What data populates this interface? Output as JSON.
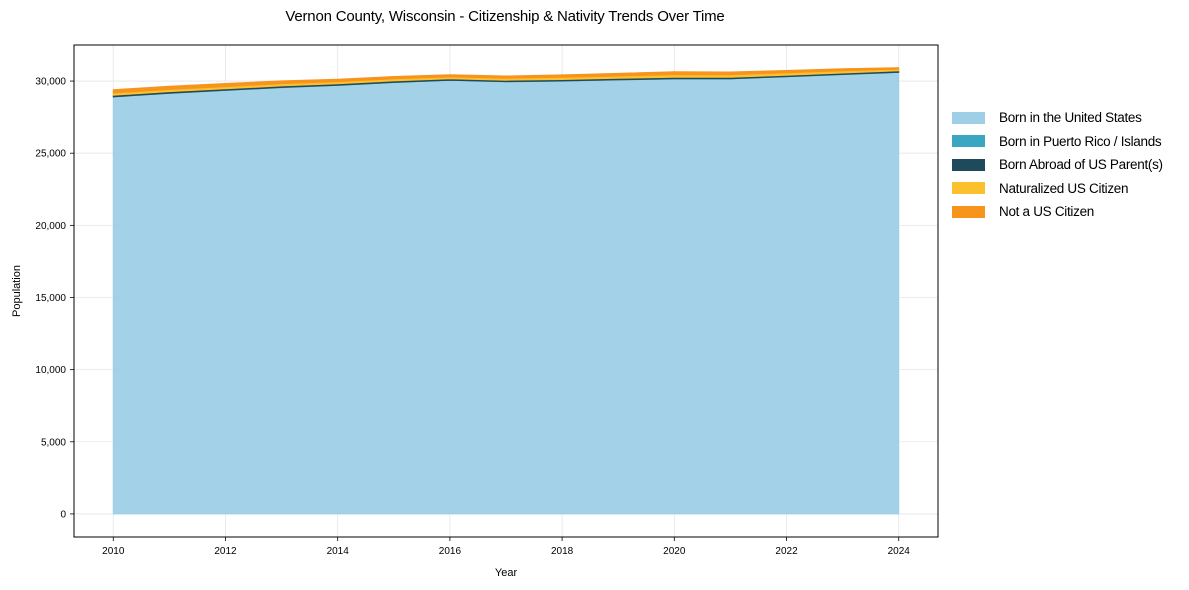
{
  "chart_data": {
    "type": "area",
    "stacked": true,
    "title": "Vernon County, Wisconsin - Citizenship & Nativity Trends Over Time",
    "xlabel": "Year",
    "ylabel": "Population",
    "x": [
      2010,
      2011,
      2012,
      2013,
      2014,
      2015,
      2016,
      2017,
      2018,
      2019,
      2020,
      2021,
      2022,
      2023,
      2024
    ],
    "x_ticks": [
      "2010",
      "2012",
      "2014",
      "2016",
      "2018",
      "2020",
      "2022",
      "2024"
    ],
    "y_ticks": [
      "0",
      "5,000",
      "10,000",
      "15,000",
      "20,000",
      "25,000",
      "30,000"
    ],
    "ylim": [
      -1600,
      32500
    ],
    "xlim": [
      2009.3,
      2024.7
    ],
    "grid": true,
    "legend_position": "right-outside",
    "series": [
      {
        "name": "Born in the United States",
        "color": "#9ecfe6",
        "values": [
          28900,
          29150,
          29350,
          29550,
          29700,
          29900,
          30050,
          29950,
          30000,
          30080,
          30150,
          30150,
          30300,
          30450,
          30600
        ]
      },
      {
        "name": "Born in Puerto Rico / Islands",
        "color": "#3aa6c1",
        "values": [
          10,
          10,
          10,
          10,
          10,
          10,
          10,
          10,
          10,
          10,
          10,
          10,
          10,
          10,
          10
        ]
      },
      {
        "name": "Born Abroad of US Parent(s)",
        "color": "#1f4a5c",
        "values": [
          110,
          110,
          105,
          105,
          100,
          100,
          100,
          100,
          100,
          100,
          100,
          100,
          100,
          100,
          100
        ]
      },
      {
        "name": "Naturalized US Citizen",
        "color": "#fbc02d",
        "values": [
          150,
          150,
          155,
          160,
          150,
          145,
          130,
          140,
          150,
          160,
          190,
          180,
          170,
          160,
          110
        ]
      },
      {
        "name": "Not a US Citizen",
        "color": "#f7941d",
        "values": [
          230,
          220,
          210,
          190,
          170,
          160,
          150,
          150,
          170,
          180,
          200,
          190,
          150,
          130,
          110
        ]
      }
    ]
  }
}
